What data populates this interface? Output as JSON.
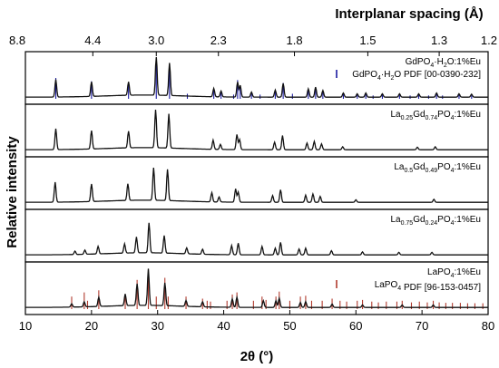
{
  "chart_data": {
    "type": "line",
    "xlabel": "2θ (°)",
    "ylabel": "Relative intensity",
    "top_xlabel": "Interplanar spacing (Å)",
    "xlim": [
      10,
      80
    ],
    "x_ticks": [
      10,
      20,
      30,
      40,
      50,
      60,
      70,
      80
    ],
    "top_ticks": [
      {
        "label": "8.8",
        "two_theta": 10.0
      },
      {
        "label": "4.4",
        "two_theta": 20.2
      },
      {
        "label": "3.0",
        "two_theta": 29.8
      },
      {
        "label": "2.3",
        "two_theta": 39.2
      },
      {
        "label": "1.8",
        "two_theta": 50.7
      },
      {
        "label": "1.5",
        "two_theta": 61.8
      },
      {
        "label": "1.3",
        "two_theta": 72.6
      },
      {
        "label": "1.2",
        "two_theta": 80.0
      }
    ],
    "colors": {
      "pattern": "#111111",
      "gdpo4_ref": "#1a1aa0",
      "lapo4_ref": "#b03a2e"
    },
    "panels": [
      {
        "label_base": [
          "GdPO",
          "4",
          "·H",
          "2",
          "O:1%Eu"
        ],
        "legend": {
          "prefix": "GdPO",
          "sub1": "4",
          "mid": "·H",
          "sub2": "2",
          "suffix": "O PDF [00-0390-232]"
        },
        "peaks": [
          [
            14.6,
            0.42
          ],
          [
            20.0,
            0.35
          ],
          [
            25.6,
            0.32
          ],
          [
            29.8,
            0.95
          ],
          [
            31.8,
            0.78
          ],
          [
            38.5,
            0.2
          ],
          [
            39.6,
            0.14
          ],
          [
            42.1,
            0.36
          ],
          [
            42.5,
            0.28
          ],
          [
            44.2,
            0.12
          ],
          [
            47.8,
            0.17
          ],
          [
            49.0,
            0.33
          ],
          [
            52.8,
            0.2
          ],
          [
            53.9,
            0.24
          ],
          [
            55.0,
            0.16
          ],
          [
            58.1,
            0.1
          ],
          [
            60.2,
            0.08
          ],
          [
            61.5,
            0.1
          ],
          [
            64.0,
            0.08
          ],
          [
            66.6,
            0.08
          ],
          [
            69.5,
            0.08
          ],
          [
            72.2,
            0.1
          ],
          [
            75.6,
            0.08
          ],
          [
            77.5,
            0.07
          ]
        ],
        "ref_lines": [
          [
            14.6,
            0.5
          ],
          [
            20.0,
            0.42
          ],
          [
            25.6,
            0.38
          ],
          [
            29.8,
            0.98
          ],
          [
            31.8,
            0.82
          ],
          [
            34.5,
            0.12
          ],
          [
            38.5,
            0.22
          ],
          [
            39.6,
            0.16
          ],
          [
            41.5,
            0.1
          ],
          [
            42.1,
            0.45
          ],
          [
            42.5,
            0.32
          ],
          [
            44.2,
            0.14
          ],
          [
            45.5,
            0.1
          ],
          [
            47.8,
            0.2
          ],
          [
            49.0,
            0.38
          ],
          [
            50.4,
            0.12
          ],
          [
            52.8,
            0.22
          ],
          [
            53.9,
            0.28
          ],
          [
            55.0,
            0.18
          ],
          [
            58.1,
            0.12
          ],
          [
            60.2,
            0.1
          ],
          [
            61.5,
            0.12
          ],
          [
            62.6,
            0.08
          ],
          [
            64.0,
            0.1
          ],
          [
            66.6,
            0.1
          ],
          [
            68.2,
            0.08
          ],
          [
            69.5,
            0.1
          ],
          [
            71.0,
            0.08
          ],
          [
            72.2,
            0.12
          ],
          [
            73.1,
            0.08
          ],
          [
            75.6,
            0.1
          ],
          [
            77.5,
            0.08
          ]
        ]
      },
      {
        "label_base": [
          "La",
          "0.25",
          "Gd",
          "0.74",
          "PO",
          "4",
          ":1%Eu"
        ],
        "peaks": [
          [
            14.6,
            0.5
          ],
          [
            20.0,
            0.44
          ],
          [
            25.6,
            0.4
          ],
          [
            29.7,
            0.92
          ],
          [
            31.7,
            0.82
          ],
          [
            38.4,
            0.22
          ],
          [
            39.5,
            0.12
          ],
          [
            42.0,
            0.36
          ],
          [
            42.4,
            0.24
          ],
          [
            47.7,
            0.18
          ],
          [
            48.9,
            0.34
          ],
          [
            52.6,
            0.16
          ],
          [
            53.7,
            0.2
          ],
          [
            54.8,
            0.14
          ],
          [
            58.0,
            0.07
          ],
          [
            69.3,
            0.06
          ],
          [
            72.0,
            0.07
          ]
        ]
      },
      {
        "label_base": [
          "La",
          "0.5",
          "Gd",
          "0.49",
          "PO",
          "4",
          ":1%Eu"
        ],
        "peaks": [
          [
            14.5,
            0.48
          ],
          [
            20.0,
            0.42
          ],
          [
            25.5,
            0.4
          ],
          [
            29.4,
            0.78
          ],
          [
            31.5,
            0.75
          ],
          [
            38.2,
            0.22
          ],
          [
            39.3,
            0.12
          ],
          [
            41.8,
            0.32
          ],
          [
            42.2,
            0.24
          ],
          [
            47.4,
            0.16
          ],
          [
            48.6,
            0.3
          ],
          [
            52.4,
            0.17
          ],
          [
            53.5,
            0.2
          ],
          [
            54.6,
            0.14
          ],
          [
            60.0,
            0.06
          ],
          [
            71.8,
            0.07
          ]
        ]
      },
      {
        "label_base": [
          "La",
          "0.75",
          "Gd",
          "0.24",
          "PO",
          "4",
          ":1%Eu"
        ],
        "peaks": [
          [
            17.5,
            0.08
          ],
          [
            19.0,
            0.1
          ],
          [
            21.0,
            0.18
          ],
          [
            25.0,
            0.22
          ],
          [
            26.8,
            0.38
          ],
          [
            28.7,
            0.72
          ],
          [
            31.0,
            0.42
          ],
          [
            34.4,
            0.14
          ],
          [
            36.8,
            0.12
          ],
          [
            41.2,
            0.22
          ],
          [
            42.2,
            0.28
          ],
          [
            45.8,
            0.2
          ],
          [
            47.8,
            0.16
          ],
          [
            48.6,
            0.3
          ],
          [
            51.4,
            0.14
          ],
          [
            52.4,
            0.16
          ],
          [
            56.3,
            0.1
          ],
          [
            61.0,
            0.07
          ],
          [
            66.5,
            0.06
          ],
          [
            71.5,
            0.06
          ]
        ]
      },
      {
        "label_base": [
          "LaPO",
          "4",
          ":1%Eu"
        ],
        "legend": {
          "prefix": "LaPO",
          "sub1": "4",
          "mid": "",
          "sub2": "",
          "suffix": " PDF [96-153-0457]"
        },
        "peaks": [
          [
            17.0,
            0.08
          ],
          [
            18.9,
            0.12
          ],
          [
            21.1,
            0.22
          ],
          [
            25.1,
            0.28
          ],
          [
            26.9,
            0.52
          ],
          [
            28.6,
            0.88
          ],
          [
            31.1,
            0.55
          ],
          [
            34.3,
            0.14
          ],
          [
            36.8,
            0.12
          ],
          [
            41.3,
            0.2
          ],
          [
            42.0,
            0.24
          ],
          [
            46.0,
            0.16
          ],
          [
            47.9,
            0.16
          ],
          [
            48.4,
            0.22
          ],
          [
            51.6,
            0.12
          ],
          [
            52.4,
            0.14
          ],
          [
            56.4,
            0.08
          ],
          [
            61.0,
            0.06
          ],
          [
            67.0,
            0.06
          ],
          [
            71.7,
            0.06
          ]
        ],
        "ref_lines": [
          [
            17.0,
            0.3
          ],
          [
            18.9,
            0.4
          ],
          [
            19.4,
            0.2
          ],
          [
            21.1,
            0.45
          ],
          [
            25.1,
            0.35
          ],
          [
            26.9,
            0.7
          ],
          [
            28.6,
            0.95
          ],
          [
            29.8,
            0.3
          ],
          [
            31.1,
            0.75
          ],
          [
            31.6,
            0.3
          ],
          [
            34.3,
            0.3
          ],
          [
            36.8,
            0.25
          ],
          [
            37.5,
            0.2
          ],
          [
            38.0,
            0.18
          ],
          [
            40.5,
            0.2
          ],
          [
            41.3,
            0.35
          ],
          [
            42.0,
            0.4
          ],
          [
            44.5,
            0.2
          ],
          [
            45.8,
            0.3
          ],
          [
            46.4,
            0.22
          ],
          [
            47.9,
            0.3
          ],
          [
            48.4,
            0.42
          ],
          [
            50.0,
            0.2
          ],
          [
            51.6,
            0.3
          ],
          [
            52.4,
            0.32
          ],
          [
            53.3,
            0.2
          ],
          [
            54.9,
            0.2
          ],
          [
            56.4,
            0.25
          ],
          [
            57.6,
            0.2
          ],
          [
            58.6,
            0.18
          ],
          [
            60.2,
            0.2
          ],
          [
            61.0,
            0.22
          ],
          [
            62.4,
            0.18
          ],
          [
            63.4,
            0.16
          ],
          [
            64.6,
            0.18
          ],
          [
            66.2,
            0.18
          ],
          [
            67.0,
            0.2
          ],
          [
            68.4,
            0.16
          ],
          [
            69.6,
            0.18
          ],
          [
            70.8,
            0.16
          ],
          [
            71.7,
            0.2
          ],
          [
            72.6,
            0.16
          ],
          [
            73.6,
            0.15
          ],
          [
            74.6,
            0.15
          ],
          [
            75.8,
            0.15
          ],
          [
            76.9,
            0.14
          ],
          [
            78.0,
            0.14
          ],
          [
            79.2,
            0.14
          ]
        ]
      }
    ]
  }
}
